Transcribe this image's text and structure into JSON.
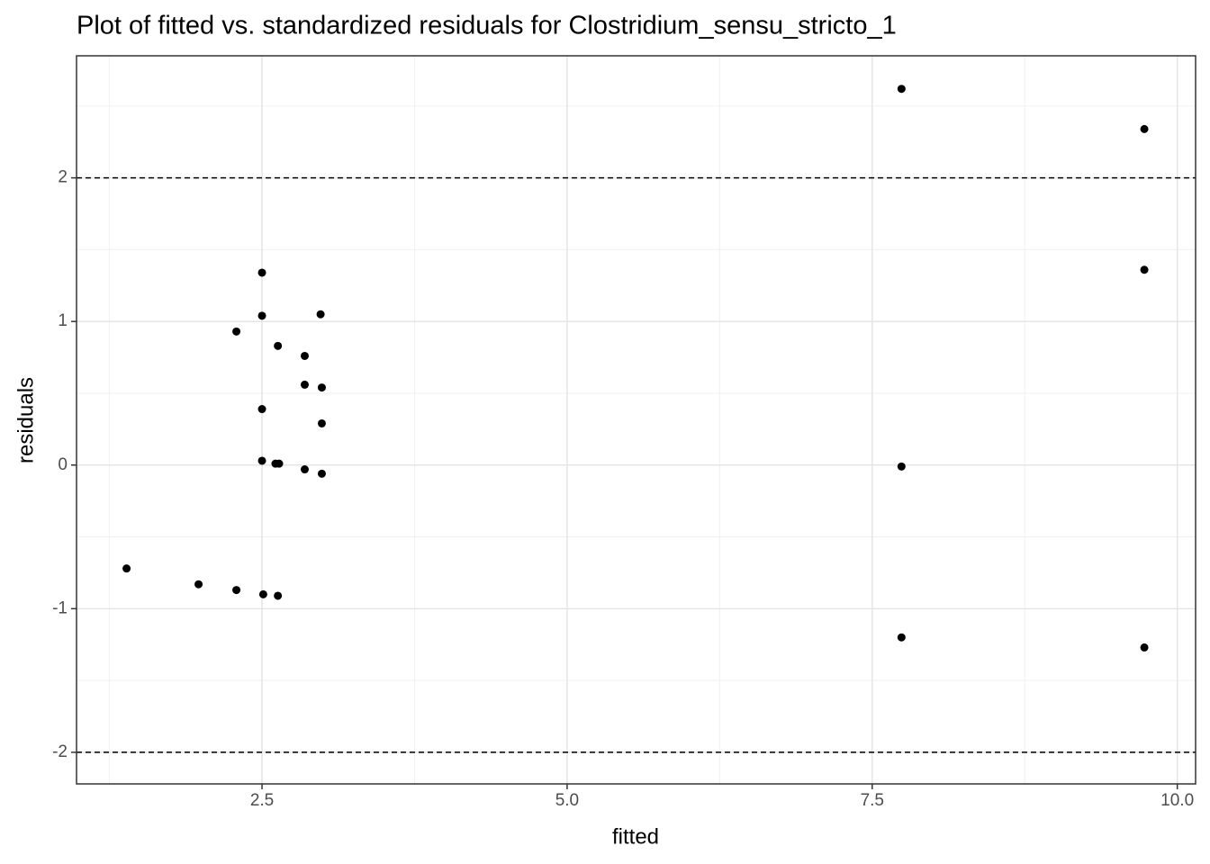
{
  "chart_data": {
    "type": "scatter",
    "title": "Plot of fitted vs. standardized residuals for Clostridium_sensu_stricto_1",
    "x_label": "fitted",
    "y_label": "residuals",
    "x": [
      7.74,
      9.73,
      9.73,
      2.5,
      2.5,
      2.98,
      2.29,
      2.63,
      2.85,
      2.85,
      2.99,
      2.5,
      2.99,
      2.5,
      2.61,
      2.64,
      2.85,
      2.99,
      7.74,
      1.39,
      1.98,
      2.29,
      2.51,
      2.63,
      7.74,
      9.73
    ],
    "values": [
      2.62,
      2.34,
      1.36,
      1.34,
      1.04,
      1.05,
      0.93,
      0.83,
      0.76,
      0.56,
      0.54,
      0.39,
      0.29,
      0.03,
      0.01,
      0.01,
      -0.03,
      -0.06,
      -0.01,
      -0.72,
      -0.83,
      -0.87,
      -0.9,
      -0.91,
      -1.2,
      -1.27
    ],
    "color": "#000000",
    "xlim": [
      0.98,
      10.15
    ],
    "ylim": [
      -2.22,
      2.85
    ],
    "xticks": [
      2.5,
      {
        "value": 5,
        "label": "5.0"
      },
      7.5,
      {
        "value": 10,
        "label": "10.0"
      }
    ],
    "yticks": [
      -2,
      -1,
      0,
      1,
      2
    ],
    "x_minor_ticks": [
      1.25,
      3.75,
      6.25,
      8.75
    ],
    "y_minor_ticks": [
      -1.5,
      -0.5,
      0.5,
      1.5,
      2.5
    ],
    "hlines": [
      2,
      -2
    ],
    "grid": true
  }
}
